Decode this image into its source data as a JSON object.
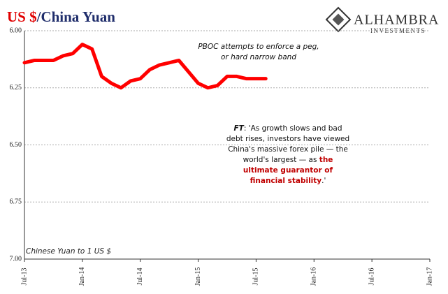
{
  "chart_data": {
    "type": "line",
    "title": [
      "US $",
      "/China Yuan"
    ],
    "brand": "ALHAMBRA",
    "brand_sub": "INVESTMENTS",
    "y_label": "Chinese Yuan to 1 US $",
    "annotation": [
      "PBOC attempts to enforce a peg,",
      "or hard narrow band"
    ],
    "quote": [
      "FT",
      ":  'As growth slows and bad debt rises, investors have viewed China's massive forex pile — the world's largest — as ",
      "the ultimate guarantor of financial stability",
      ".'"
    ],
    "categories": [
      "Jul-13",
      null,
      null,
      null,
      null,
      null,
      "Jan-14",
      null,
      null,
      null,
      null,
      null,
      "Jul-14",
      null,
      null,
      null,
      null,
      null,
      "Jan-15",
      null,
      null,
      null,
      null,
      null,
      "Jul-15",
      null,
      null,
      null,
      null,
      null,
      "Jan-16",
      null,
      null,
      null,
      null,
      null,
      "Jul-16",
      null,
      null,
      null,
      null,
      null,
      "Jan-17"
    ],
    "series": [
      {
        "name": "USD/CNY",
        "color": "#ff0000",
        "values": [
          6.14,
          6.13,
          6.13,
          6.13,
          6.11,
          6.1,
          6.06,
          6.08,
          6.2,
          6.23,
          6.25,
          6.22,
          6.21,
          6.17,
          6.15,
          6.14,
          6.13,
          6.18,
          6.23,
          6.25,
          6.24,
          6.2,
          6.2,
          6.21,
          6.21,
          6.21,
          null,
          null,
          null,
          null,
          null,
          null,
          null,
          null,
          null,
          null,
          null,
          null,
          null,
          null,
          null,
          null,
          null
        ]
      }
    ],
    "ylim": [
      6,
      7
    ],
    "invert_y": true,
    "yticks": [
      {
        "value": 6,
        "label": "6.00"
      },
      {
        "value": 6.25,
        "label": "6.25"
      },
      {
        "value": 6.5,
        "label": "6.50"
      },
      {
        "value": 6.75,
        "label": "6.75"
      },
      {
        "value": 7,
        "label": "7.00"
      }
    ],
    "grid": true
  }
}
